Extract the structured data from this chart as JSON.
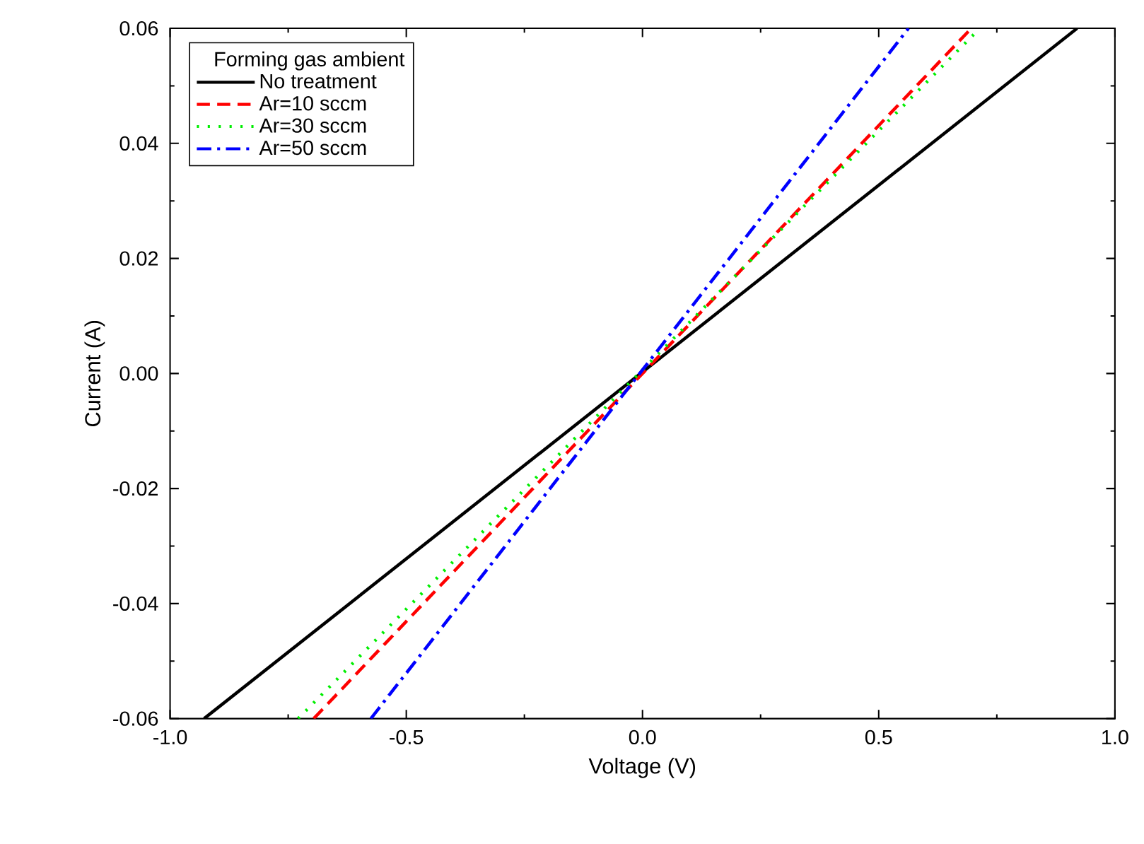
{
  "chart_data": {
    "type": "line",
    "xlabel": "Voltage (V)",
    "ylabel": "Current (A)",
    "legend_title": "Forming gas ambient",
    "legend": "top left",
    "grid": false,
    "xlim": [
      -1.0,
      1.0
    ],
    "ylim": [
      -0.06,
      0.06
    ],
    "xticks": [
      {
        "value": -1.0,
        "label": "-1.0"
      },
      {
        "value": -0.5,
        "label": "-0.5"
      },
      {
        "value": 0.0,
        "label": "0.0"
      },
      {
        "value": 0.5,
        "label": "0.5"
      },
      {
        "value": 1.0,
        "label": "1.0"
      }
    ],
    "yticks": [
      {
        "value": -0.06,
        "label": "-0.06"
      },
      {
        "value": -0.04,
        "label": "-0.04"
      },
      {
        "value": -0.02,
        "label": "-0.02"
      },
      {
        "value": 0.0,
        "label": "0.00"
      },
      {
        "value": 0.02,
        "label": "0.02"
      },
      {
        "value": 0.04,
        "label": "0.04"
      },
      {
        "value": 0.06,
        "label": "0.06"
      }
    ],
    "series": [
      {
        "name": "No treatment",
        "color": "#000000",
        "line_style": "solid",
        "x": [
          -0.928,
          0.92
        ],
        "values": [
          -0.06,
          0.06
        ]
      },
      {
        "name": "Ar=10 sccm",
        "color": "#ff0000",
        "line_style": "dashed",
        "x": [
          -0.696,
          0.696
        ],
        "values": [
          -0.06,
          0.06
        ]
      },
      {
        "name": "Ar=30 sccm",
        "color": "#00ee00",
        "line_style": "dotted",
        "x": [
          -0.729,
          0.714
        ],
        "values": [
          -0.06,
          0.06
        ]
      },
      {
        "name": "Ar=50 sccm",
        "color": "#0000ff",
        "line_style": "dashdot",
        "x": [
          -0.575,
          0.563
        ],
        "values": [
          -0.06,
          0.06
        ]
      }
    ]
  }
}
